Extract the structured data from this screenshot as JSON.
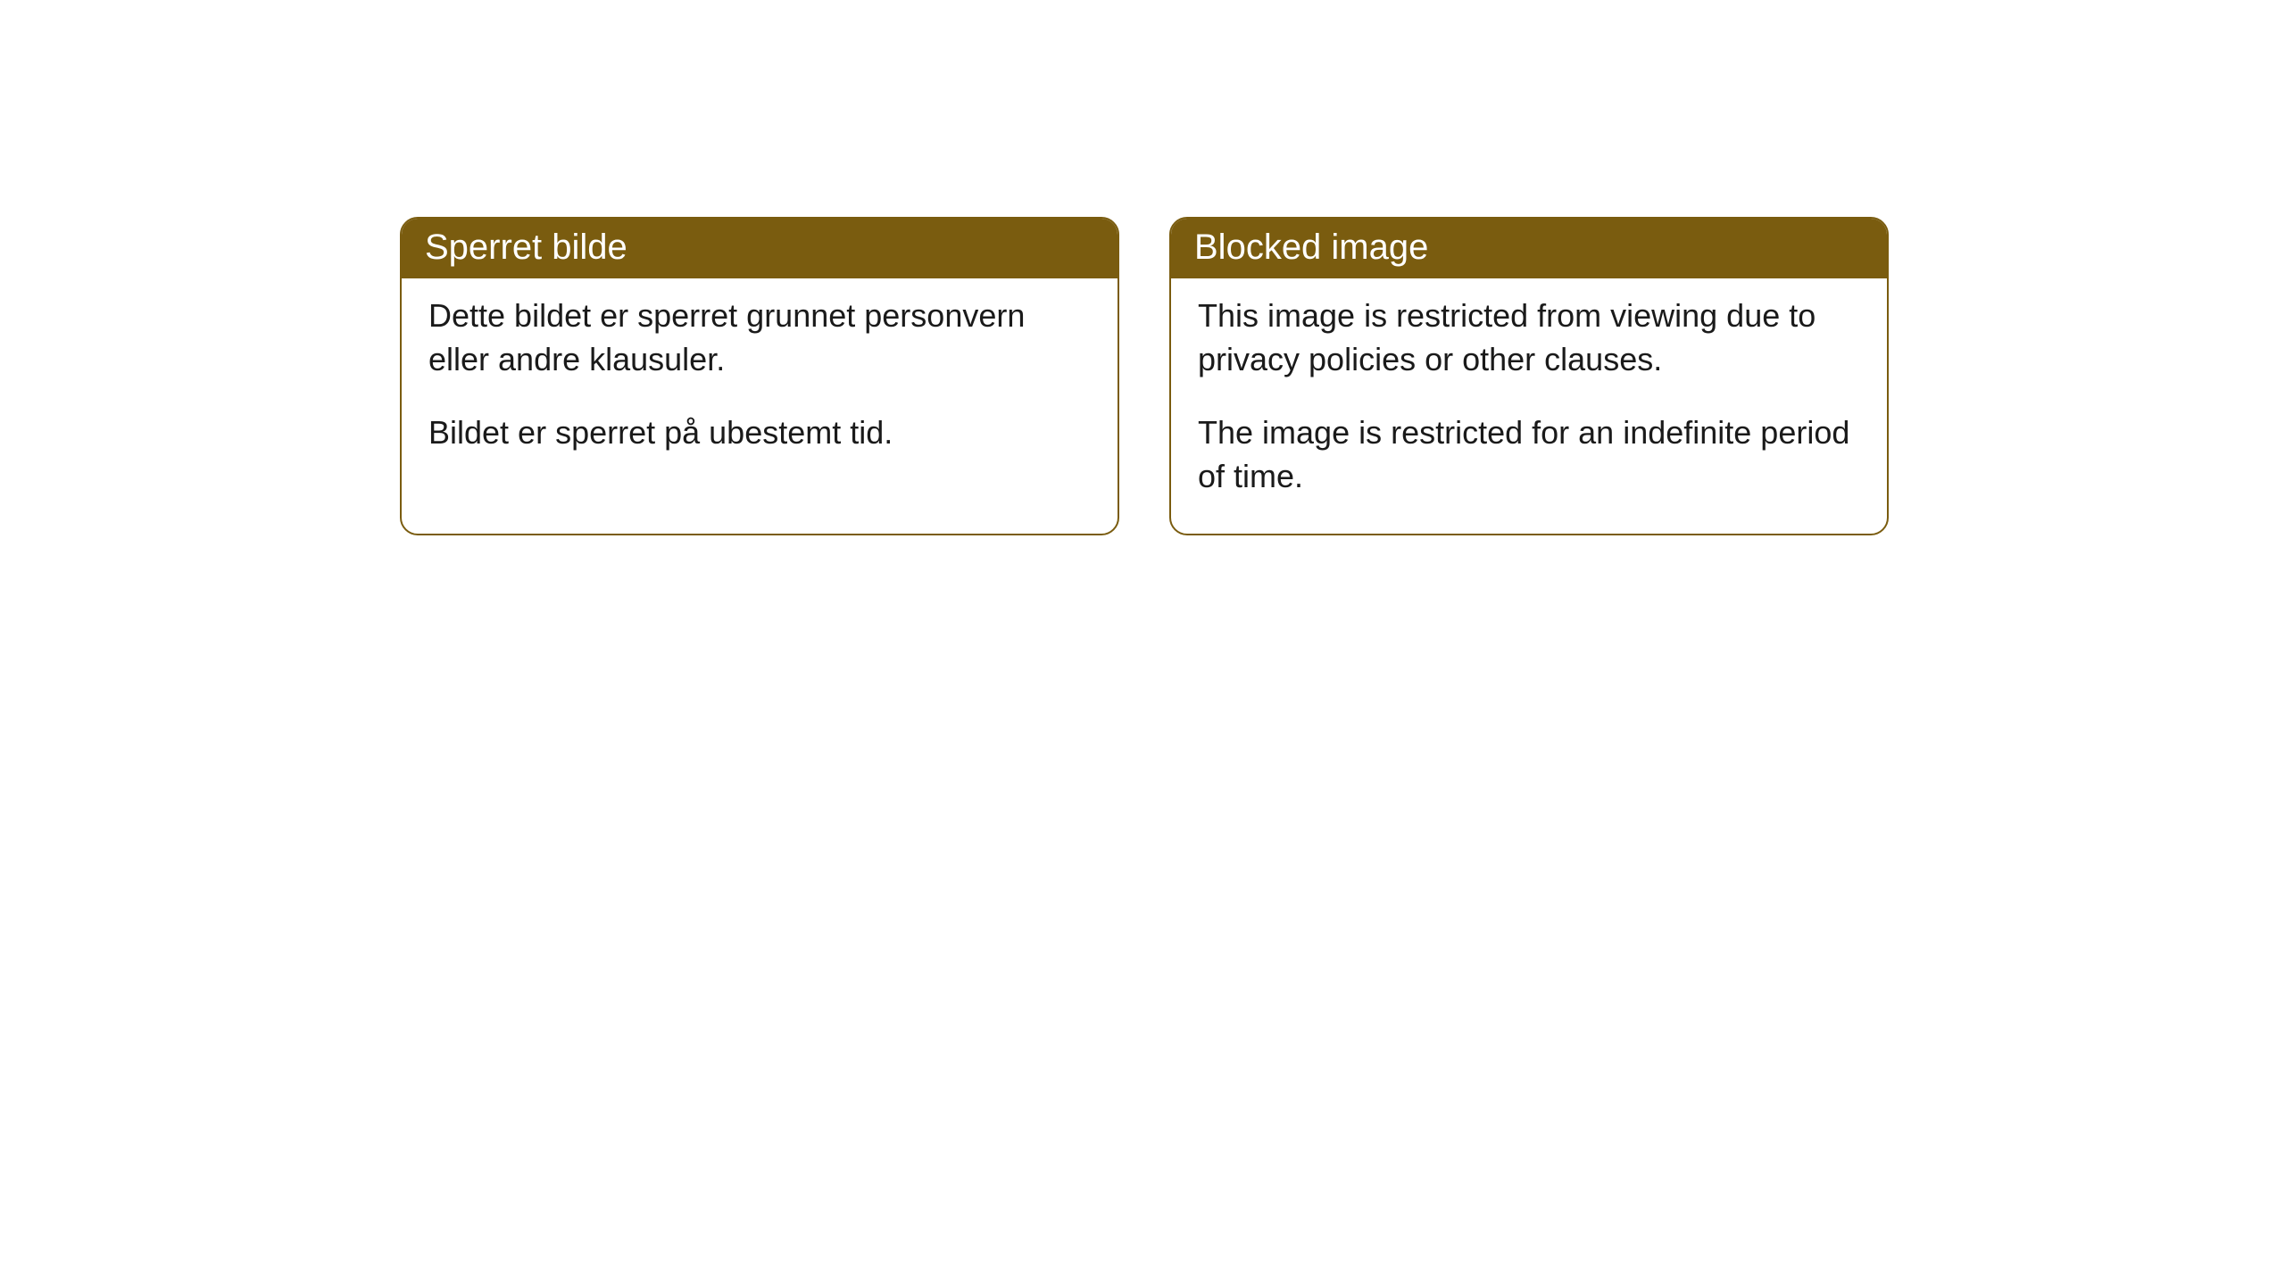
{
  "cards": [
    {
      "header": "Sperret bilde",
      "paragraph1": "Dette bildet er sperret grunnet personvern eller andre klausuler.",
      "paragraph2": "Bildet er sperret på ubestemt tid."
    },
    {
      "header": "Blocked image",
      "paragraph1": "This image is restricted from viewing due to privacy policies or other clauses.",
      "paragraph2": "The image is restricted for an indefinite period of time."
    }
  ],
  "styling": {
    "header_bg_color": "#7a5c0f",
    "header_text_color": "#ffffff",
    "border_color": "#7a5c0f",
    "body_bg_color": "#ffffff",
    "body_text_color": "#1a1a1a",
    "border_radius": 20,
    "header_fontsize": 40,
    "body_fontsize": 36
  }
}
